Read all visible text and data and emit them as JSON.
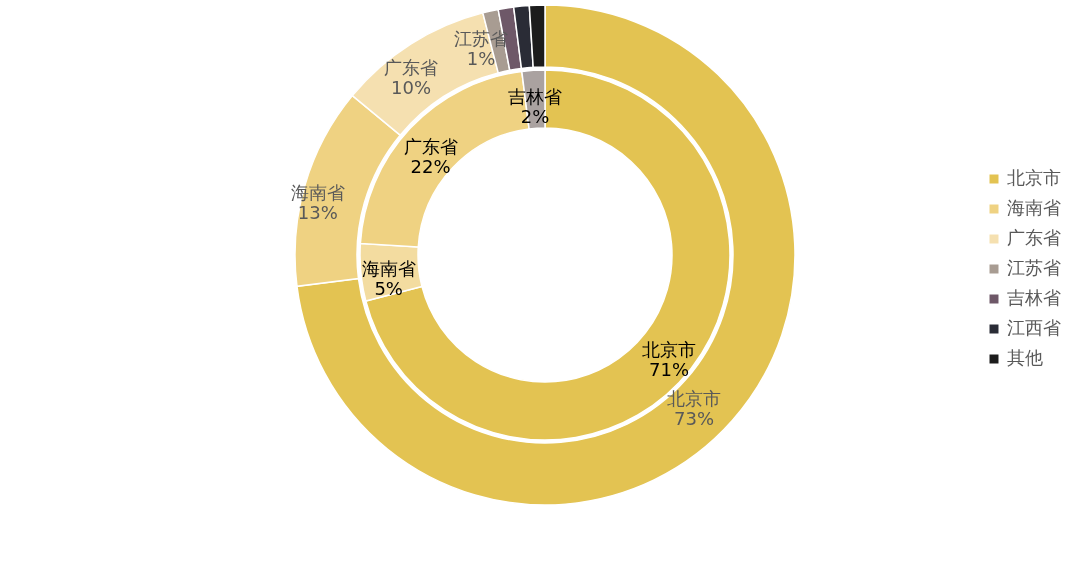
{
  "chart_data": {
    "type": "donut",
    "categories": [
      "北京市",
      "海南省",
      "广东省",
      "江苏省",
      "吉林省",
      "江西省",
      "其他"
    ],
    "legend": "right",
    "series": [
      {
        "values": [
          73,
          13,
          10,
          1,
          1,
          1,
          1
        ],
        "colors": [
          "#e3c352",
          "#efd282",
          "#f5e0b0",
          "#a89c92",
          "#6e5868",
          "#2a2c36",
          "#1c1c1c"
        ],
        "value_labels": [
          "73%",
          "13%",
          "10%",
          "1%",
          null,
          null,
          null
        ]
      },
      {
        "values": [
          71,
          5,
          22,
          null,
          2,
          null,
          null
        ],
        "colors": [
          "#e3c352",
          "#f3dca0",
          "#efd282",
          null,
          "#aaa2a0",
          null,
          null
        ],
        "value_labels": [
          "71%",
          "5%",
          "22%",
          null,
          "2%",
          null,
          null
        ]
      }
    ]
  }
}
